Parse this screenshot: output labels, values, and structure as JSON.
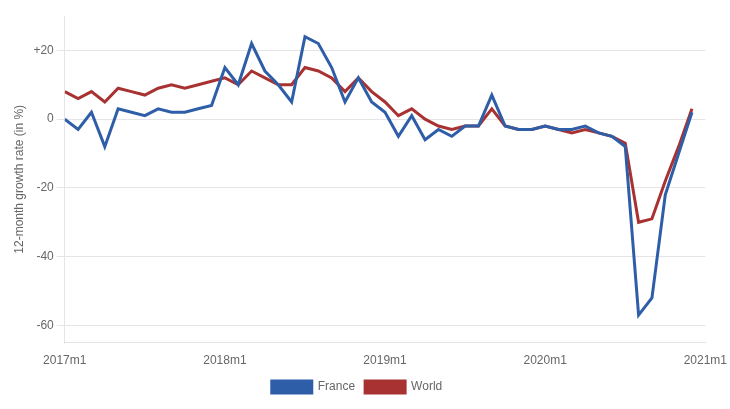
{
  "chart_data": {
    "type": "line",
    "x": [
      0,
      1,
      2,
      3,
      4,
      5,
      6,
      7,
      8,
      9,
      10,
      11,
      12,
      13,
      14,
      15,
      16,
      17,
      18,
      19,
      20,
      21,
      22,
      23,
      24,
      25,
      26,
      27,
      28,
      29,
      30,
      31,
      32,
      33,
      34,
      35,
      36,
      37,
      38,
      39,
      40,
      41,
      42,
      43,
      44,
      45,
      46,
      47
    ],
    "series": [
      {
        "name": "France",
        "color": "#2e5ea8",
        "values": [
          0,
          -3,
          2,
          -8,
          3,
          2,
          1,
          3,
          2,
          2,
          3,
          4,
          15,
          10,
          22,
          14,
          10,
          5,
          24,
          22,
          15,
          5,
          12,
          5,
          2,
          -5,
          1,
          -6,
          -3,
          -5,
          -2,
          -2,
          7,
          -2,
          -3,
          -3,
          -2,
          -3,
          -3,
          -2,
          -4,
          -5,
          -8,
          -57,
          -52,
          -22,
          -10,
          2
        ]
      },
      {
        "name": "World",
        "color": "#a83232",
        "values": [
          8,
          6,
          8,
          5,
          9,
          8,
          7,
          9,
          10,
          9,
          10,
          11,
          12,
          10,
          14,
          12,
          10,
          10,
          15,
          14,
          12,
          8,
          12,
          8,
          5,
          1,
          3,
          0,
          -2,
          -3,
          -2,
          -2,
          3,
          -2,
          -3,
          -3,
          -2,
          -3,
          -4,
          -3,
          -4,
          -5,
          -7,
          -30,
          -29,
          -18,
          -8,
          3
        ]
      }
    ],
    "y_label": "12-month growth rate (in %)",
    "xlim": [
      0,
      48
    ],
    "xticks": [
      {
        "value": 0,
        "label": "2017m1"
      },
      {
        "value": 12,
        "label": "2018m1"
      },
      {
        "value": 24,
        "label": "2019m1"
      },
      {
        "value": 36,
        "label": "2020m1"
      },
      {
        "value": 48,
        "label": "2021m1"
      }
    ],
    "ylim": [
      -65,
      30
    ],
    "yticks": [
      -60,
      -40,
      -20,
      0,
      {
        "value": 20,
        "label": "+20"
      }
    ],
    "grid": "y",
    "legend": "bottom"
  }
}
